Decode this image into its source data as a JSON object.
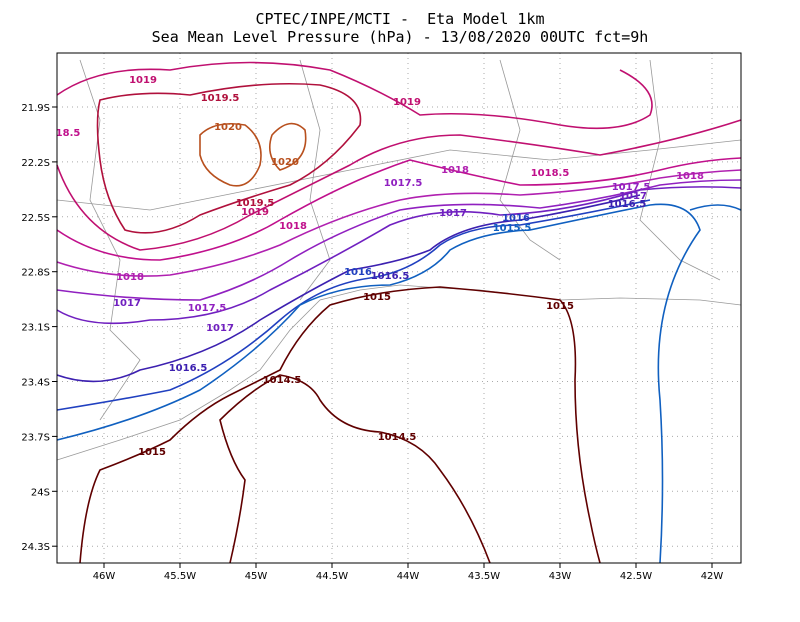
{
  "header": {
    "title": "CPTEC/INPE/MCTI -  Eta Model 1km",
    "subtitle": "Sea Mean Level Pressure (hPa) - 13/08/2020 00UTC fct=9h"
  },
  "map": {
    "lon_ticks": [
      "46W",
      "45.5W",
      "45W",
      "44.5W",
      "44W",
      "43.5W",
      "43W",
      "42.5W",
      "42W"
    ],
    "lat_ticks": [
      "21.9S",
      "22.2S",
      "22.5S",
      "22.8S",
      "23.1S",
      "23.4S",
      "23.7S",
      "24S",
      "24.3S"
    ],
    "contour_labels": [
      "1019",
      "1019.5",
      "1019",
      "18.5",
      "1020",
      "1020",
      "1018",
      "1018.5",
      "1018",
      "1017.5",
      "1017.5",
      "1017",
      "1016.5",
      "1019.5",
      "1019",
      "1018",
      "1017",
      "1016",
      "1015.5",
      "1016",
      "1016.5",
      "1015",
      "1015",
      "1018",
      "1017",
      "1017.5",
      "1017",
      "1016.5",
      "1014.5",
      "1014.5",
      "1015"
    ]
  }
}
